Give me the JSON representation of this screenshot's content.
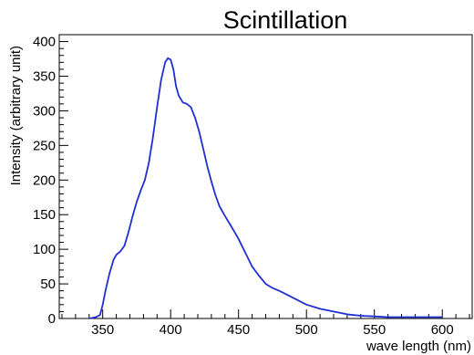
{
  "chart_data": {
    "type": "line",
    "title": "Scintillation",
    "xlabel": "wave length (nm)",
    "ylabel": "Intensity (arbitrary unit)",
    "xlim": [
      318,
      622
    ],
    "ylim": [
      0,
      410
    ],
    "xticks": [
      350,
      400,
      450,
      500,
      550,
      600
    ],
    "yticks": [
      0,
      50,
      100,
      150,
      200,
      250,
      300,
      350,
      400
    ],
    "grid": false,
    "legend": "none",
    "line_color": "#1f2fd4",
    "series": [
      {
        "x": [
          340,
          345,
          348,
          350,
          352,
          355,
          358,
          360,
          363,
          366,
          369,
          372,
          375,
          378,
          381,
          384,
          387,
          390,
          393,
          396,
          398,
          400,
          402,
          404,
          406,
          409,
          412,
          415,
          418,
          421,
          424,
          427,
          430,
          433,
          436,
          440,
          445,
          450,
          455,
          460,
          465,
          470,
          475,
          480,
          490,
          500,
          510,
          520,
          530,
          540,
          550,
          560,
          580,
          600
        ],
        "y": [
          0,
          2,
          5,
          20,
          40,
          65,
          85,
          92,
          97,
          105,
          125,
          148,
          168,
          185,
          200,
          225,
          262,
          305,
          345,
          370,
          376,
          374,
          360,
          335,
          322,
          312,
          310,
          305,
          290,
          270,
          245,
          220,
          198,
          178,
          162,
          148,
          132,
          115,
          95,
          75,
          62,
          50,
          44,
          40,
          30,
          20,
          14,
          10,
          6,
          4,
          3,
          2,
          2,
          2
        ]
      }
    ]
  }
}
